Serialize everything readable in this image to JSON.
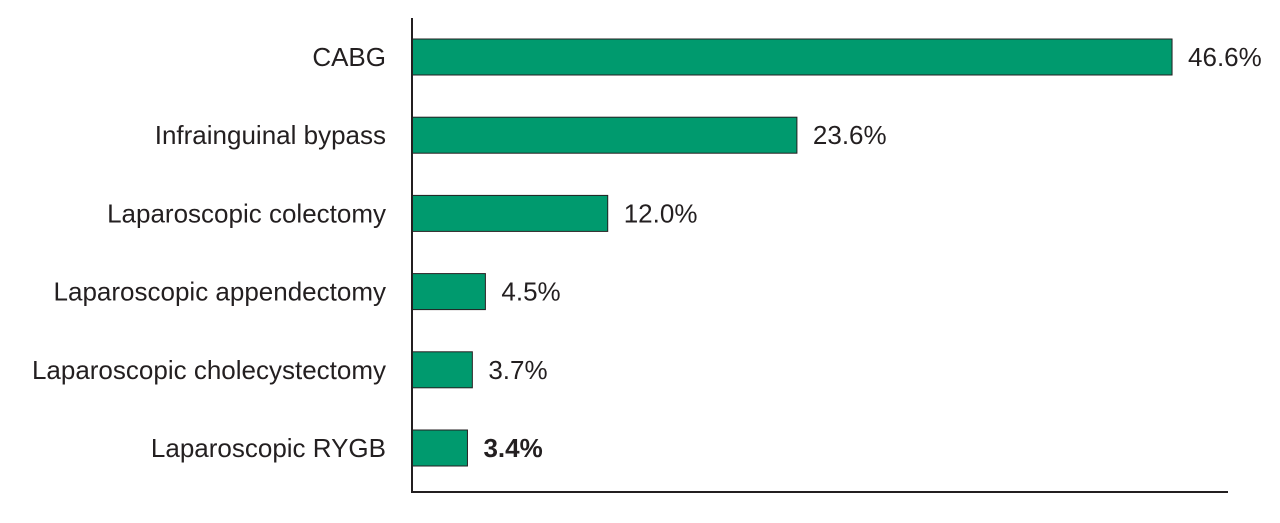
{
  "chart_data": {
    "type": "bar",
    "orientation": "horizontal",
    "categories": [
      "CABG",
      "Infrainguinal bypass",
      "Laparoscopic colectomy",
      "Laparoscopic appendectomy",
      "Laparoscopic cholecystectomy",
      "Laparoscopic RYGB"
    ],
    "values": [
      46.6,
      23.6,
      12.0,
      4.5,
      3.7,
      3.4
    ],
    "value_labels": [
      "46.6%",
      "23.6%",
      "12.0%",
      "4.5%",
      "3.7%",
      "3.4%"
    ],
    "highlighted_index": 5,
    "title": "",
    "xlabel": "",
    "ylabel": "",
    "xlim": [
      0,
      50
    ],
    "grid": false,
    "colors": {
      "bar": "#009a6e",
      "bar_outline": "#231f20",
      "axis": "#231f20",
      "text": "#231f20"
    }
  }
}
